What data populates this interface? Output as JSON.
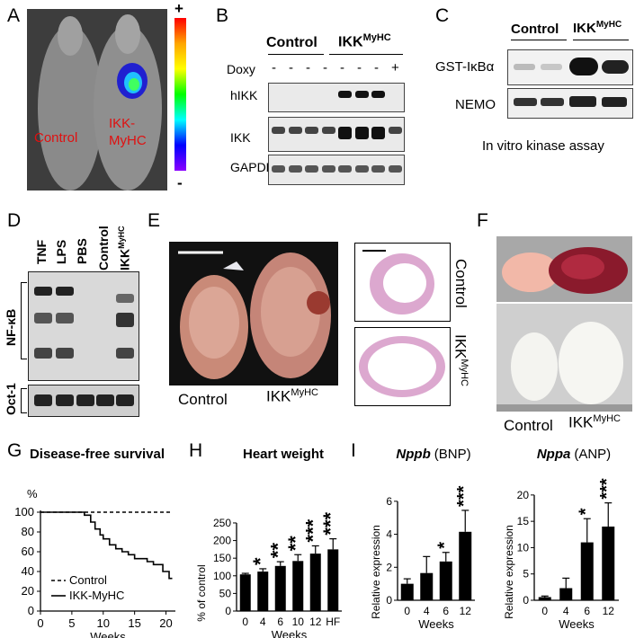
{
  "panels": {
    "A": "A",
    "B": "B",
    "C": "C",
    "D": "D",
    "E": "E",
    "F": "F",
    "G": "G",
    "H": "H",
    "I": "I"
  },
  "panelA": {
    "scale_plus": "+",
    "scale_minus": "-",
    "label_control": "Control",
    "label_ikk": "IKK-\nMyHC",
    "colorbar": [
      "#ff0000",
      "#ffa500",
      "#ffff00",
      "#00ff00",
      "#00ffff",
      "#0000ff",
      "#8b00ff"
    ]
  },
  "panelB": {
    "header_control": "Control",
    "header_ikk": "IKK",
    "header_ikk_sup": "MyHC",
    "doxy_label": "Doxy",
    "doxy_values": [
      "-",
      "-",
      "-",
      "-",
      "-",
      "-",
      "-",
      "+"
    ],
    "rows": [
      "hIKK",
      "IKK",
      "GAPDH"
    ]
  },
  "panelC": {
    "header_control": "Control",
    "header_ikk": "IKK",
    "header_ikk_sup": "MyHC",
    "rows": [
      "GST-IκBα",
      "NEMO"
    ],
    "caption": "In vitro kinase assay"
  },
  "panelD": {
    "lanes": [
      "TNF",
      "LPS",
      "PBS",
      "Control",
      "IKK"
    ],
    "lane_sup": "MyHC",
    "nfkb": "NF-κB",
    "oct1": "Oct-1"
  },
  "panelE": {
    "label_control": "Control",
    "label_ikk": "IKK",
    "label_ikk_sup": "MyHC",
    "side_control": "Control",
    "side_ikk": "IKK",
    "side_ikk_sup": "MyHC"
  },
  "panelF": {
    "label_control": "Control",
    "label_ikk": "IKK",
    "label_ikk_sup": "MyHC"
  },
  "chart_data": [
    {
      "type": "line",
      "title": "Disease-free survival",
      "ylabel": "%",
      "xlabel": "Weeks",
      "x_ticks": [
        0,
        5,
        10,
        15,
        20
      ],
      "y_ticks": [
        0,
        20,
        40,
        60,
        80,
        100
      ],
      "xlim": [
        0,
        21.5
      ],
      "ylim": [
        0,
        100
      ],
      "series": [
        {
          "name": "Control",
          "style": "dashed",
          "points": [
            [
              0,
              100
            ],
            [
              21,
              100
            ]
          ]
        },
        {
          "name": "IKK-MyHC",
          "style": "solid",
          "points": [
            [
              0,
              100
            ],
            [
              7,
              100
            ],
            [
              7,
              97
            ],
            [
              8,
              97
            ],
            [
              8,
              90
            ],
            [
              8.7,
              90
            ],
            [
              8.7,
              83
            ],
            [
              9.5,
              83
            ],
            [
              9.5,
              77
            ],
            [
              10,
              77
            ],
            [
              10,
              73
            ],
            [
              11,
              73
            ],
            [
              11,
              67
            ],
            [
              12,
              67
            ],
            [
              12,
              63
            ],
            [
              13,
              63
            ],
            [
              13,
              60
            ],
            [
              14,
              60
            ],
            [
              14,
              57
            ],
            [
              15,
              57
            ],
            [
              15,
              53
            ],
            [
              17,
              53
            ],
            [
              17,
              50
            ],
            [
              18,
              50
            ],
            [
              18,
              47
            ],
            [
              19.5,
              47
            ],
            [
              19.5,
              40
            ],
            [
              20.5,
              40
            ],
            [
              20.5,
              33
            ],
            [
              21,
              33
            ]
          ]
        }
      ]
    },
    {
      "type": "bar",
      "title": "Heart weight",
      "ylabel": "% of control",
      "xlabel": "Weeks",
      "categories": [
        "0",
        "4",
        "6",
        "10",
        "12",
        "HF"
      ],
      "values": [
        104,
        112,
        128,
        142,
        163,
        175
      ],
      "errors": [
        3,
        8,
        12,
        18,
        22,
        30
      ],
      "significance": [
        "",
        "*",
        "**",
        "**",
        "***",
        "***"
      ],
      "y_ticks": [
        0,
        50,
        100,
        150,
        200,
        250
      ],
      "ylim": [
        0,
        255
      ]
    },
    {
      "type": "bar",
      "title": "Nppb",
      "title_suffix": "(BNP)",
      "ylabel": "Relative expression",
      "xlabel": "Weeks",
      "categories": [
        "0",
        "4",
        "6",
        "12"
      ],
      "values": [
        1.0,
        1.65,
        2.35,
        4.15
      ],
      "errors": [
        0.3,
        1.0,
        0.55,
        1.3
      ],
      "significance": [
        "",
        "",
        "*",
        "***"
      ],
      "y_ticks": [
        0,
        2,
        4,
        6
      ],
      "ylim": [
        0,
        6.7
      ]
    },
    {
      "type": "bar",
      "title": "Nppa",
      "title_suffix": "(ANP)",
      "ylabel": "Relative expression",
      "xlabel": "Weeks",
      "categories": [
        "0",
        "4",
        "6",
        "12"
      ],
      "values": [
        0.6,
        2.3,
        11.0,
        14.0
      ],
      "errors": [
        0.2,
        1.9,
        4.5,
        4.5
      ],
      "significance": [
        "",
        "",
        "*",
        "***"
      ],
      "y_ticks": [
        0,
        5,
        10,
        15,
        20
      ],
      "ylim": [
        0,
        21
      ]
    }
  ]
}
